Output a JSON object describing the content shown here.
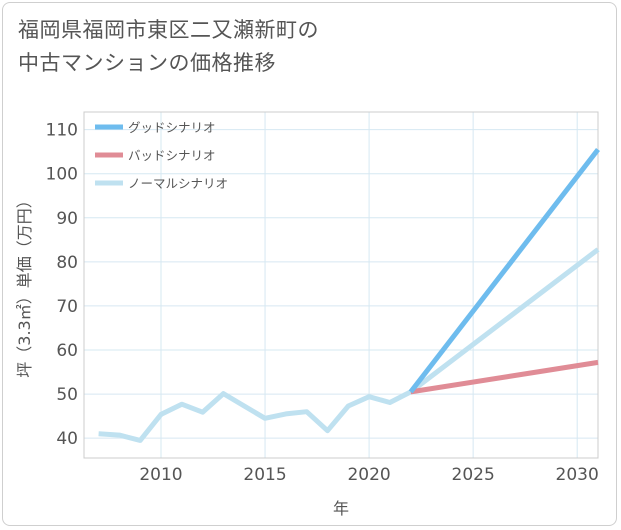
{
  "chart_data": {
    "type": "line",
    "title": "福岡県福岡市東区二又瀬新町の中古マンションの価格推移",
    "title_lines": [
      "福岡県福岡市東区二又瀬新町の",
      "中古マンションの価格推移"
    ],
    "xlabel": "年",
    "ylabel": "坪（3.3㎡）単価（万円）",
    "xlim": [
      2006.3,
      2031
    ],
    "ylim": [
      35.5,
      114
    ],
    "xticks": [
      2010,
      2015,
      2020,
      2025,
      2030
    ],
    "yticks": [
      40,
      50,
      60,
      70,
      80,
      90,
      100,
      110
    ],
    "grid": true,
    "legend_position": "top-left",
    "series": [
      {
        "name": "グッドシナリオ",
        "color": "#6ebcee",
        "x": [
          2022,
          2031
        ],
        "y": [
          50.5,
          105.5
        ]
      },
      {
        "name": "バッドシナリオ",
        "color": "#e08c96",
        "x": [
          2022,
          2031
        ],
        "y": [
          50.5,
          57.2
        ]
      },
      {
        "name": "ノーマルシナリオ",
        "color": "#bfe1f0",
        "x": [
          2007,
          2008,
          2009,
          2010,
          2011,
          2012,
          2013,
          2014,
          2015,
          2016,
          2017,
          2018,
          2019,
          2020,
          2021,
          2022,
          2031
        ],
        "y": [
          41,
          40.7,
          39.5,
          45.4,
          47.7,
          45.9,
          50.1,
          47.3,
          44.5,
          45.5,
          46.0,
          41.7,
          47.3,
          49.4,
          48.1,
          50.5,
          82.8
        ]
      }
    ]
  }
}
